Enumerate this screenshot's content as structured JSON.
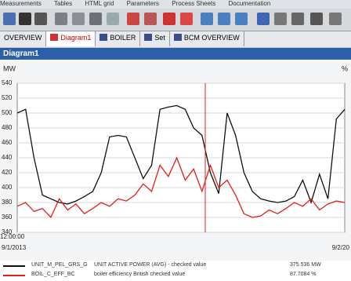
{
  "menu": [
    "Measurements",
    "Tables",
    "HTML grid",
    "Parameters",
    "Process Sheets",
    "Documentation"
  ],
  "tabs": [
    "OVERVIEW",
    "Diagram1",
    "BOILER",
    "Set",
    "BCM OVERVIEW"
  ],
  "window_title": "Diagram1",
  "chart": {
    "type": "line",
    "y_unit": "MW",
    "y2_unit": "%",
    "ylim": [
      340,
      540
    ],
    "yticks": [
      340,
      360,
      380,
      400,
      420,
      440,
      460,
      480,
      500,
      520,
      540
    ],
    "grid": true,
    "x_start_label": "12:00:00",
    "x_start_date": "9/1/2013",
    "x_end_date": "9/2/20",
    "series": [
      {
        "name": "UNIT ACTIVE POWER (AVG) - checked value",
        "color": "#111111",
        "values": [
          500,
          505,
          440,
          390,
          385,
          380,
          378,
          382,
          388,
          395,
          420,
          468,
          470,
          468,
          440,
          412,
          430,
          505,
          508,
          510,
          505,
          480,
          470,
          420,
          392,
          500,
          470,
          420,
          395,
          385,
          382,
          380,
          382,
          388,
          410,
          380,
          418,
          385,
          492,
          505
        ]
      },
      {
        "name": "boiler efficiency British checked value",
        "color": "#e0201a",
        "values": [
          375,
          380,
          368,
          372,
          360,
          385,
          370,
          378,
          365,
          372,
          380,
          375,
          385,
          382,
          390,
          405,
          395,
          430,
          415,
          440,
          410,
          425,
          395,
          430,
          400,
          410,
          390,
          365,
          360,
          362,
          370,
          365,
          372,
          380,
          375,
          385,
          370,
          378,
          382,
          380
        ]
      }
    ]
  },
  "legend": [
    {
      "tag": "UNIT_M_PEL_GRS_G",
      "value": "375.536 MW"
    },
    {
      "tag": "BOIL_C_EFF_BC",
      "value": "87.7084 %"
    }
  ]
}
